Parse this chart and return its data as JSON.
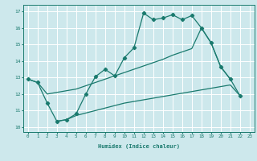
{
  "xlabel": "Humidex (Indice chaleur)",
  "xlim": [
    -0.5,
    23.5
  ],
  "ylim": [
    9.7,
    17.4
  ],
  "xticks": [
    0,
    1,
    2,
    3,
    4,
    5,
    6,
    7,
    8,
    9,
    10,
    11,
    12,
    13,
    14,
    15,
    16,
    17,
    18,
    19,
    20,
    21,
    22,
    23
  ],
  "yticks": [
    10,
    11,
    12,
    13,
    14,
    15,
    16,
    17
  ],
  "bg_color": "#cde8ec",
  "line_color": "#1a7a6e",
  "grid_color": "#ffffff",
  "main_x": [
    0,
    1,
    2,
    3,
    4,
    5,
    6,
    7,
    8,
    9,
    10,
    11,
    12,
    13,
    14,
    15,
    16,
    17,
    18,
    19,
    20,
    21,
    22
  ],
  "main_y": [
    12.9,
    12.7,
    11.45,
    10.35,
    10.45,
    10.8,
    12.0,
    13.05,
    13.5,
    13.1,
    14.2,
    14.8,
    16.9,
    16.5,
    16.6,
    16.8,
    16.5,
    16.75,
    16.0,
    15.1,
    13.65,
    12.9,
    11.9
  ],
  "upper_x": [
    0,
    1,
    2,
    3,
    4,
    5,
    6,
    7,
    8,
    9,
    10,
    11,
    12,
    13,
    14,
    15,
    16,
    17,
    18,
    19,
    20,
    21
  ],
  "upper_y": [
    12.9,
    12.7,
    12.0,
    12.1,
    12.2,
    12.3,
    12.5,
    12.7,
    12.9,
    13.1,
    13.3,
    13.5,
    13.7,
    13.9,
    14.1,
    14.35,
    14.55,
    14.75,
    16.0,
    15.1,
    13.65,
    12.9
  ],
  "lower_x": [
    3,
    4,
    5,
    6,
    7,
    8,
    9,
    10,
    11,
    12,
    13,
    14,
    15,
    16,
    17,
    18,
    19,
    20,
    21,
    22
  ],
  "lower_y": [
    10.35,
    10.45,
    10.7,
    10.85,
    11.0,
    11.15,
    11.3,
    11.45,
    11.55,
    11.65,
    11.75,
    11.85,
    11.95,
    12.05,
    12.15,
    12.25,
    12.35,
    12.45,
    12.55,
    11.9
  ]
}
